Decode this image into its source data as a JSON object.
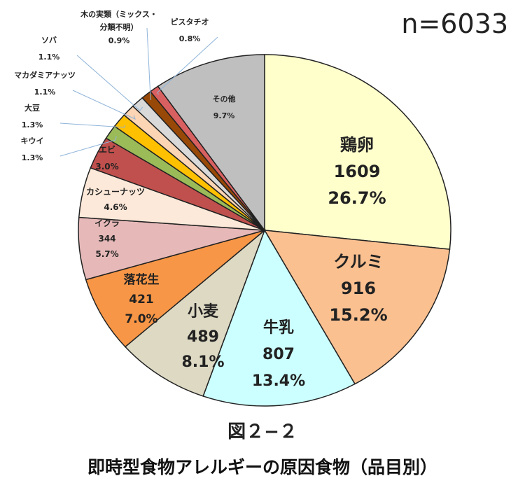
{
  "n_label": "n=6033",
  "figure_number": "図２−２",
  "chart_data": {
    "type": "pie",
    "title": "即時型食物アレルギーの原因食物（品目別）",
    "total": 6033,
    "slices": [
      {
        "name": "鶏卵",
        "count": "1609",
        "percent": "26.7%",
        "value": 26.7,
        "color": "#FFFFCC"
      },
      {
        "name": "クルミ",
        "count": "916",
        "percent": "15.2%",
        "value": 15.2,
        "color": "#FAC090"
      },
      {
        "name": "牛乳",
        "count": "807",
        "percent": "13.4%",
        "value": 13.4,
        "color": "#CCFFFF"
      },
      {
        "name": "小麦",
        "count": "489",
        "percent": "8.1%",
        "value": 8.1,
        "color": "#DDD9C3"
      },
      {
        "name": "落花生",
        "count": "421",
        "percent": "7.0%",
        "value": 7.0,
        "color": "#F79646"
      },
      {
        "name": "イクラ",
        "count": "344",
        "percent": "5.7%",
        "value": 5.7,
        "color": "#E6B9B8"
      },
      {
        "name": "カシューナッツ",
        "percent": "4.6%",
        "value": 4.6,
        "color": "#FDE9D9"
      },
      {
        "name": "エビ",
        "percent": "3.0%",
        "value": 3.0,
        "color": "#C0504D"
      },
      {
        "name": "キウイ",
        "percent": "1.3%",
        "value": 1.3,
        "color": "#9BBB59"
      },
      {
        "name": "大豆",
        "percent": "1.3%",
        "value": 1.3,
        "color": "#FFC000"
      },
      {
        "name": "マカダミアナッツ",
        "percent": "1.1%",
        "value": 1.1,
        "color": "#FCD5B4"
      },
      {
        "name": "ソバ",
        "percent": "1.1%",
        "value": 1.1,
        "color": "#D9D9D9"
      },
      {
        "name": "木の実類（ミックス・分類不明）",
        "percent": "0.9%",
        "value": 0.9,
        "color": "#984807"
      },
      {
        "name": "ピスタチオ",
        "percent": "0.8%",
        "value": 0.8,
        "color": "#D96060"
      },
      {
        "name": "その他",
        "percent": "9.7%",
        "value": 9.7,
        "color": "#BFBFBF"
      }
    ]
  }
}
